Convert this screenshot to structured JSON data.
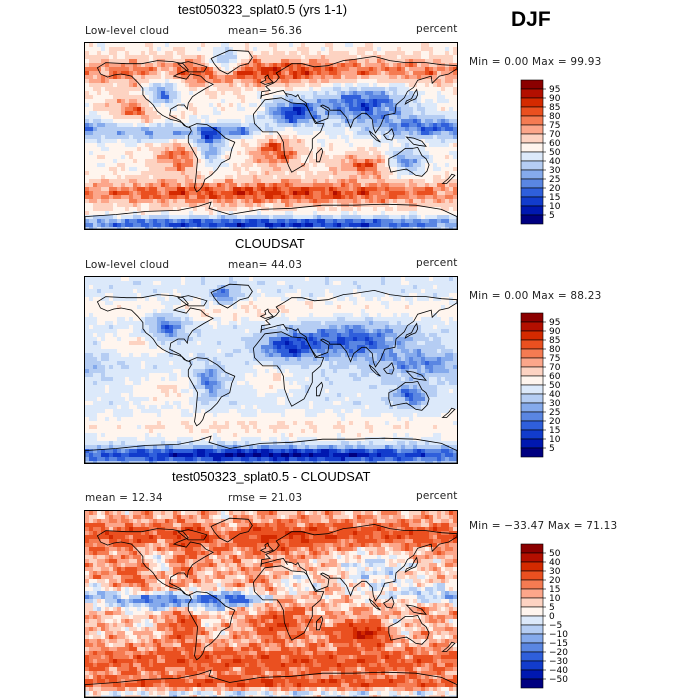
{
  "season": "DJF",
  "colorbar_abs": {
    "labels": [
      "95",
      "90",
      "85",
      "80",
      "75",
      "70",
      "60",
      "50",
      "40",
      "30",
      "25",
      "20",
      "15",
      "10",
      "5"
    ],
    "colors": [
      "#8b0000",
      "#b30f00",
      "#d42a00",
      "#ea5020",
      "#f57b52",
      "#fca68a",
      "#fdd3c2",
      "#fff5ee",
      "#dce9fa",
      "#b5cdf3",
      "#85aaec",
      "#5a86e2",
      "#2f5fdb",
      "#123ccc",
      "#0018b0",
      "#000080"
    ]
  },
  "colorbar_diff": {
    "labels": [
      "50",
      "40",
      "30",
      "20",
      "15",
      "10",
      "5",
      "0",
      "−5",
      "−10",
      "−15",
      "−20",
      "−30",
      "−40",
      "−50"
    ],
    "colors": [
      "#8b0000",
      "#b30f00",
      "#d42a00",
      "#ea5020",
      "#f57b52",
      "#fca68a",
      "#fdd3c2",
      "#fff5ee",
      "#dce9fa",
      "#b5cdf3",
      "#85aaec",
      "#5a86e2",
      "#2f5fdb",
      "#123ccc",
      "#0018b0",
      "#000080"
    ]
  },
  "panels": [
    {
      "title": "test050323_splat0.5 (yrs 1-1)",
      "left_label": "Low-level cloud",
      "mid_label": "mean=  56.36",
      "units": "percent",
      "stats": "Min =    0.00 Max =  99.93"
    },
    {
      "title": "CLOUDSAT",
      "left_label": "Low-level cloud",
      "mid_label": "mean=  44.03",
      "units": "percent",
      "stats": "Min =    0.00 Max =  88.23"
    },
    {
      "title": "test050323_splat0.5 - CLOUDSAT",
      "left_label": "mean =  12.34",
      "mid_label": "rmse =  21.03",
      "units": "percent",
      "stats": "Min = −33.47 Max =  71.13"
    }
  ],
  "chart_data": [
    {
      "type": "heatmap",
      "title": "test050323_splat0.5 (yrs 1-1)",
      "variable": "Low-level cloud",
      "units": "percent",
      "mean": 56.36,
      "min": 0.0,
      "max": 99.93,
      "levels": [
        5,
        10,
        15,
        20,
        25,
        30,
        40,
        50,
        60,
        70,
        75,
        80,
        85,
        90,
        95
      ]
    },
    {
      "type": "heatmap",
      "title": "CLOUDSAT",
      "variable": "Low-level cloud",
      "units": "percent",
      "mean": 44.03,
      "min": 0.0,
      "max": 88.23,
      "levels": [
        5,
        10,
        15,
        20,
        25,
        30,
        40,
        50,
        60,
        70,
        75,
        80,
        85,
        90,
        95
      ]
    },
    {
      "type": "heatmap",
      "title": "test050323_splat0.5 - CLOUDSAT",
      "units": "percent",
      "mean": 12.34,
      "rmse": 21.03,
      "min": -33.47,
      "max": 71.13,
      "levels": [
        -50,
        -40,
        -30,
        -20,
        -15,
        -10,
        -5,
        0,
        5,
        10,
        15,
        20,
        30,
        40,
        50
      ]
    }
  ]
}
